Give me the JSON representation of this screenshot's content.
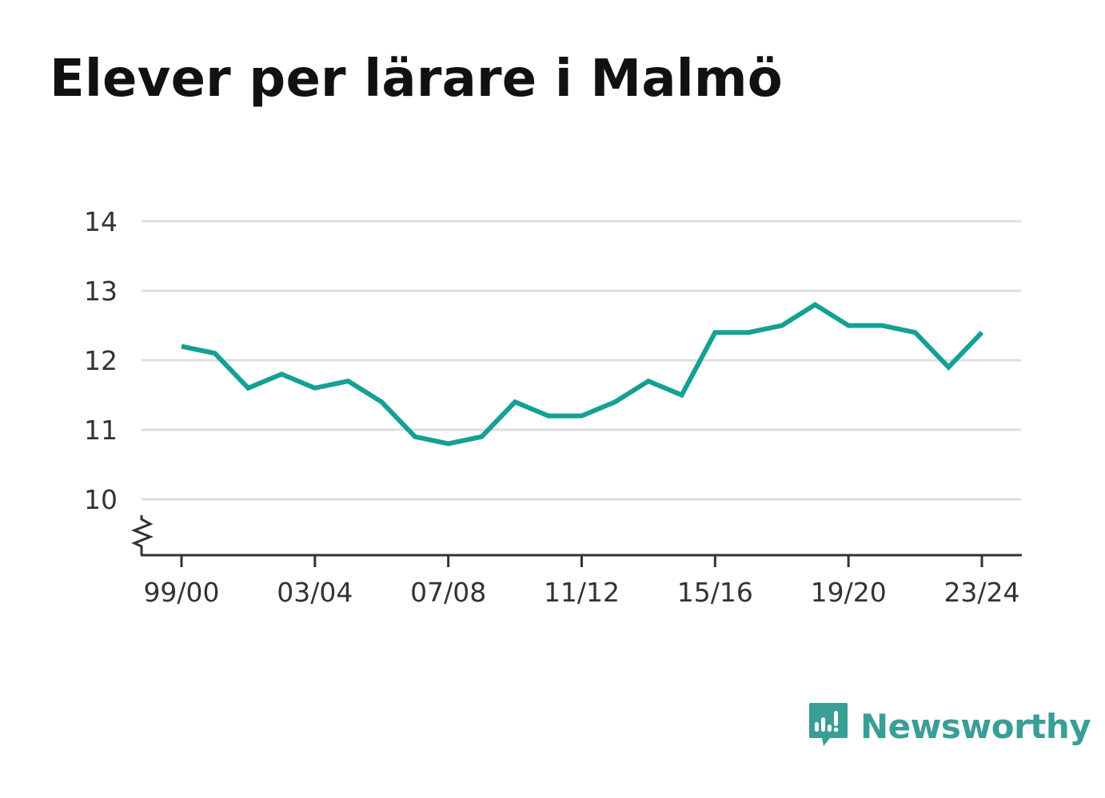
{
  "chart_data": {
    "type": "line",
    "title": "Elever per lärare i Malmö",
    "xlabel": "",
    "ylabel": "",
    "x_tick_labels": [
      "99/00",
      "03/04",
      "07/08",
      "11/12",
      "15/16",
      "19/20",
      "23/24"
    ],
    "y_tick_labels": [
      "10",
      "11",
      "12",
      "13",
      "14"
    ],
    "categories": [
      "99/00",
      "00/01",
      "01/02",
      "02/03",
      "03/04",
      "04/05",
      "05/06",
      "06/07",
      "07/08",
      "08/09",
      "09/10",
      "10/11",
      "11/12",
      "12/13",
      "13/14",
      "14/15",
      "15/16",
      "16/17",
      "17/18",
      "18/19",
      "19/20",
      "20/21",
      "21/22",
      "22/23",
      "23/24"
    ],
    "series": [
      {
        "values": [
          12.2,
          12.1,
          11.6,
          11.8,
          11.6,
          11.7,
          11.4,
          10.9,
          10.8,
          10.9,
          11.4,
          11.2,
          11.2,
          11.4,
          11.7,
          11.5,
          12.4,
          12.4,
          12.5,
          12.8,
          12.5,
          12.5,
          12.4,
          11.9,
          12.4
        ],
        "color": "#15a095"
      }
    ],
    "ylim": [
      9.2,
      14
    ],
    "y_axis_break": true,
    "grid": true,
    "legend": "none"
  },
  "brand": {
    "name": "Newsworthy",
    "color": "#3a9e96"
  }
}
